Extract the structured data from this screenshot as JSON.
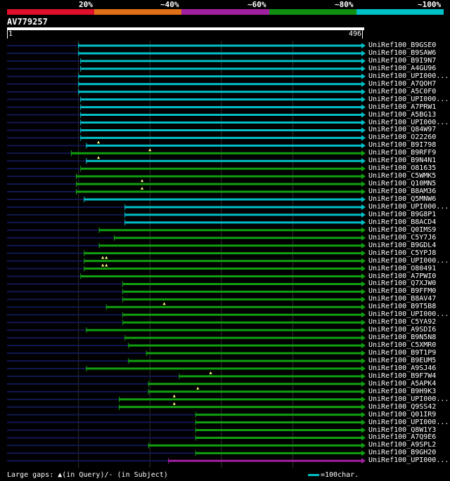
{
  "legend": {
    "labels": [
      "20%",
      "~40%",
      "~60%",
      "~80%",
      "~100%"
    ],
    "colors": [
      "#e0102c",
      "#e07018",
      "#a020a0",
      "#109010",
      "#00c0c8"
    ]
  },
  "query": {
    "title": "AV779257",
    "start": "1",
    "end": "496",
    "length": 496
  },
  "hits": [
    {
      "label": "UniRef100_B9GSE0",
      "start": 100,
      "end": 496,
      "color": "cyan"
    },
    {
      "label": "UniRef100_B9SAW6",
      "start": 100,
      "end": 496,
      "color": "cyan"
    },
    {
      "label": "UniRef100_B9I9N7",
      "start": 103,
      "end": 496,
      "color": "cyan"
    },
    {
      "label": "UniRef100_A4GU96",
      "start": 103,
      "end": 496,
      "color": "cyan"
    },
    {
      "label": "UniRef100_UPI000...",
      "start": 100,
      "end": 496,
      "color": "cyan"
    },
    {
      "label": "UniRef100_A7QOH7",
      "start": 100,
      "end": 496,
      "color": "cyan"
    },
    {
      "label": "UniRef100_A5C0F0",
      "start": 100,
      "end": 496,
      "color": "cyan"
    },
    {
      "label": "UniRef100_UPI000...",
      "start": 103,
      "end": 496,
      "color": "cyan"
    },
    {
      "label": "UniRef100_A7PRW1",
      "start": 103,
      "end": 496,
      "color": "cyan"
    },
    {
      "label": "UniRef100_A5BG13",
      "start": 103,
      "end": 496,
      "color": "cyan"
    },
    {
      "label": "UniRef100_UPI000...",
      "start": 103,
      "end": 496,
      "color": "cyan"
    },
    {
      "label": "UniRef100_Q84W97",
      "start": 103,
      "end": 496,
      "color": "cyan"
    },
    {
      "label": "UniRef100_O22260",
      "start": 103,
      "end": 496,
      "color": "cyan"
    },
    {
      "label": "UniRef100_B9I798",
      "start": 111,
      "end": 496,
      "color": "cyan",
      "gaps": [
        128
      ]
    },
    {
      "label": "UniRef100_B9RFF9",
      "start": 90,
      "end": 496,
      "color": "green",
      "gaps": [
        200
      ]
    },
    {
      "label": "UniRef100_B9N4N1",
      "start": 111,
      "end": 496,
      "color": "cyan",
      "gaps": [
        128
      ]
    },
    {
      "label": "UniRef100_O81635",
      "start": 103,
      "end": 496,
      "color": "green"
    },
    {
      "label": "UniRef100_C5WMK5",
      "start": 97,
      "end": 496,
      "color": "green"
    },
    {
      "label": "UniRef100_Q10MN5",
      "start": 97,
      "end": 496,
      "color": "green",
      "gaps": [
        189
      ]
    },
    {
      "label": "UniRef100_B8AM36",
      "start": 97,
      "end": 496,
      "color": "green",
      "gaps": [
        189
      ]
    },
    {
      "label": "UniRef100_Q5MNW6",
      "start": 108,
      "end": 496,
      "color": "cyan"
    },
    {
      "label": "UniRef100_UPI000...",
      "start": 165,
      "end": 496,
      "color": "cyan"
    },
    {
      "label": "UniRef100_B9G8P1",
      "start": 165,
      "end": 496,
      "color": "cyan"
    },
    {
      "label": "UniRef100_B8ACD4",
      "start": 165,
      "end": 496,
      "color": "cyan"
    },
    {
      "label": "UniRef100_Q0IMS9",
      "start": 129,
      "end": 496,
      "color": "green"
    },
    {
      "label": "UniRef100_C5Y7J6",
      "start": 150,
      "end": 496,
      "color": "green"
    },
    {
      "label": "UniRef100_B9GDL4",
      "start": 129,
      "end": 496,
      "color": "green"
    },
    {
      "label": "UniRef100_C5YPJ8",
      "start": 108,
      "end": 496,
      "color": "green"
    },
    {
      "label": "UniRef100_UPI000...",
      "start": 108,
      "end": 496,
      "color": "green",
      "gaps": [
        134,
        139
      ]
    },
    {
      "label": "UniRef100_O80491",
      "start": 108,
      "end": 496,
      "color": "green",
      "gaps": [
        134,
        139
      ]
    },
    {
      "label": "UniRef100_A7PWI0",
      "start": 103,
      "end": 496,
      "color": "green"
    },
    {
      "label": "UniRef100_Q7XJW0",
      "start": 162,
      "end": 496,
      "color": "green"
    },
    {
      "label": "UniRef100_B9FFM0",
      "start": 162,
      "end": 496,
      "color": "green"
    },
    {
      "label": "UniRef100_B8AV47",
      "start": 162,
      "end": 496,
      "color": "green"
    },
    {
      "label": "UniRef100_B9T5B8",
      "start": 139,
      "end": 496,
      "color": "green",
      "gaps": [
        220
      ]
    },
    {
      "label": "UniRef100_UPI000...",
      "start": 162,
      "end": 496,
      "color": "green"
    },
    {
      "label": "UniRef100_C5YA92",
      "start": 162,
      "end": 496,
      "color": "green"
    },
    {
      "label": "UniRef100_A9SDI6",
      "start": 111,
      "end": 496,
      "color": "green"
    },
    {
      "label": "UniRef100_B9N5N8",
      "start": 165,
      "end": 496,
      "color": "green"
    },
    {
      "label": "UniRef100_C5XMR0",
      "start": 170,
      "end": 496,
      "color": "green"
    },
    {
      "label": "UniRef100_B9T1P9",
      "start": 195,
      "end": 496,
      "color": "green"
    },
    {
      "label": "UniRef100_B9EUM5",
      "start": 170,
      "end": 496,
      "color": "green"
    },
    {
      "label": "UniRef100_A9SJ46",
      "start": 111,
      "end": 496,
      "color": "green"
    },
    {
      "label": "UniRef100_B9F7W4",
      "start": 241,
      "end": 496,
      "color": "green",
      "gaps": [
        285
      ]
    },
    {
      "label": "UniRef100_A5APK4",
      "start": 198,
      "end": 496,
      "color": "green"
    },
    {
      "label": "UniRef100_B9H9K3",
      "start": 198,
      "end": 496,
      "color": "green",
      "gaps": [
        267
      ]
    },
    {
      "label": "UniRef100_UPI000...",
      "start": 157,
      "end": 496,
      "color": "green",
      "gaps": [
        234
      ]
    },
    {
      "label": "UniRef100_Q9SS42",
      "start": 157,
      "end": 496,
      "color": "green",
      "gaps": [
        234
      ]
    },
    {
      "label": "UniRef100_Q01IR9",
      "start": 264,
      "end": 496,
      "color": "green"
    },
    {
      "label": "UniRef100_UPI000...",
      "start": 264,
      "end": 496,
      "color": "green"
    },
    {
      "label": "UniRef100_Q8W1Y3",
      "start": 264,
      "end": 496,
      "color": "green"
    },
    {
      "label": "UniRef100_A7Q9E6",
      "start": 264,
      "end": 496,
      "color": "green"
    },
    {
      "label": "UniRef100_A9SPL2",
      "start": 198,
      "end": 496,
      "color": "green"
    },
    {
      "label": "UniRef100_B9GH20",
      "start": 264,
      "end": 496,
      "color": "green"
    },
    {
      "label": "UniRef100_UPI000...",
      "start": 226,
      "end": 496,
      "color": "purple"
    }
  ],
  "footer": {
    "gaps_text": "Large gaps: ▲(in Query)/- (in Subject)",
    "scale_text": "=100char."
  }
}
